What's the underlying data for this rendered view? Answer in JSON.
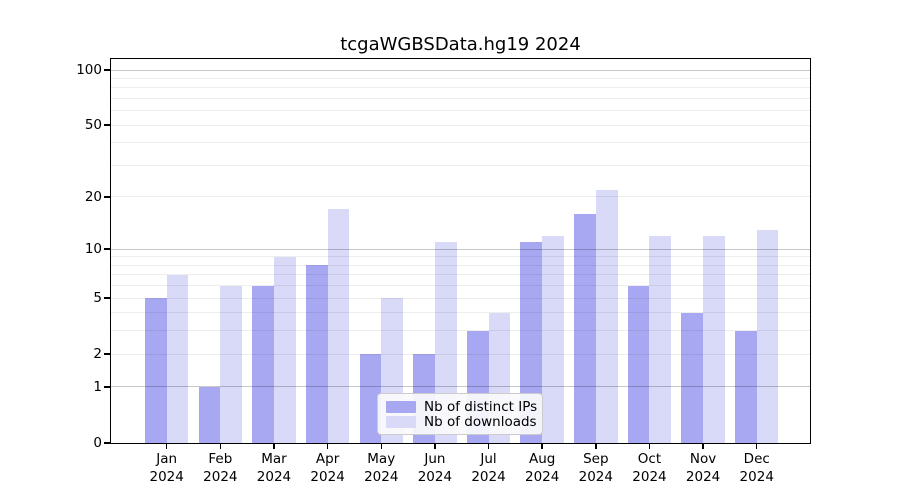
{
  "chart_data": {
    "type": "bar",
    "title": "tcgaWGBSData.hg19 2024",
    "year": "2024",
    "categories": [
      "Jan",
      "Feb",
      "Mar",
      "Apr",
      "May",
      "Jun",
      "Jul",
      "Aug",
      "Sep",
      "Oct",
      "Nov",
      "Dec"
    ],
    "series": [
      {
        "name": "Nb of distinct IPs",
        "color": "#a8a8f2",
        "values": [
          5,
          1,
          6,
          8,
          2,
          2,
          3,
          11,
          16,
          6,
          4,
          3
        ]
      },
      {
        "name": "Nb of downloads",
        "color": "#d9d9f8",
        "values": [
          7,
          6,
          9,
          17,
          5,
          11,
          4,
          12,
          22,
          12,
          12,
          13
        ]
      }
    ],
    "yscale": "log10(value+1)",
    "ylim": [
      0,
      115
    ],
    "yticks": [
      0,
      1,
      2,
      5,
      10,
      20,
      50,
      100
    ],
    "major_gridlines": [
      1,
      10,
      100
    ],
    "minor_gridlines": [
      2,
      3,
      4,
      5,
      6,
      7,
      8,
      9,
      20,
      30,
      40,
      50,
      60,
      70,
      80,
      90
    ],
    "grid": true,
    "legend_position": "bottom-center",
    "xlabel": "",
    "ylabel": ""
  },
  "colors": {
    "axis": "#000000",
    "grid_major": "rgba(0,0,0,0.22)",
    "grid_minor": "rgba(0,0,0,0.07)",
    "legend_border": "#cccccc"
  }
}
